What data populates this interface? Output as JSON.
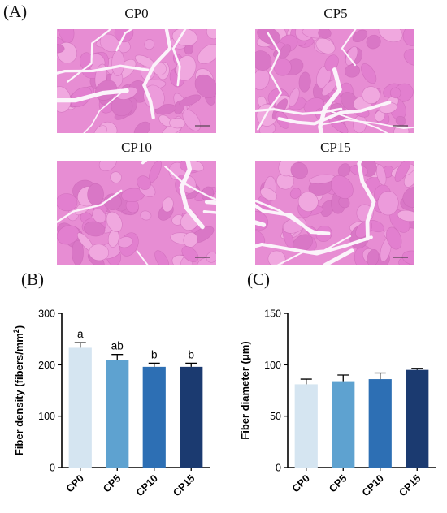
{
  "panelA": {
    "letter": "(A)",
    "images": [
      {
        "label": "CP0",
        "seed": 11
      },
      {
        "label": "CP5",
        "seed": 23
      },
      {
        "label": "CP10",
        "seed": 37
      },
      {
        "label": "CP15",
        "seed": 53
      }
    ]
  },
  "panelB": {
    "letter": "(B)"
  },
  "panelC": {
    "letter": "(C)"
  },
  "chart_data": [
    {
      "type": "bar",
      "categories": [
        "CP0",
        "CP5",
        "CP10",
        "CP15"
      ],
      "values": [
        233,
        210,
        196,
        196
      ],
      "errors": [
        10,
        10,
        7,
        7
      ],
      "labels": [
        "a",
        "ab",
        "b",
        "b"
      ],
      "ylabel_main": "Fiber density (fibers/mm",
      "ylabel_sup": "2",
      "ylabel_end": ")",
      "ylim": [
        0,
        300
      ],
      "yticks": [
        0,
        100,
        200,
        300
      ],
      "colors": [
        "#d5e5f1",
        "#5ea2d0",
        "#2d6fb4",
        "#1b3a70"
      ]
    },
    {
      "type": "bar",
      "categories": [
        "CP0",
        "CP5",
        "CP10",
        "CP15"
      ],
      "values": [
        81,
        84,
        86,
        95
      ],
      "errors": [
        5,
        6,
        6,
        1.5
      ],
      "labels": [
        "",
        "",
        "",
        ""
      ],
      "ylabel_main": "Fiber diameter (μm)",
      "ylabel_sup": "",
      "ylabel_end": "",
      "ylim": [
        0,
        150
      ],
      "yticks": [
        0,
        50,
        100,
        150
      ],
      "colors": [
        "#d5e5f1",
        "#5ea2d0",
        "#2d6fb4",
        "#1b3a70"
      ]
    }
  ]
}
